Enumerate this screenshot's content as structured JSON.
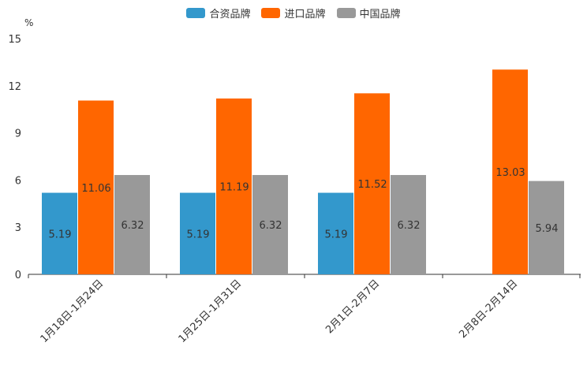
{
  "chart_data": {
    "type": "bar",
    "unit_label": "%",
    "categories": [
      "1月18日-1月24日",
      "1月25日-1月31日",
      "2月1日-2月7日",
      "2月8日-2月14日"
    ],
    "series": [
      {
        "name": "合资品牌",
        "color": "#3398cc",
        "values": [
          5.19,
          5.19,
          5.19,
          null
        ]
      },
      {
        "name": "进口品牌",
        "color": "#ff6600",
        "values": [
          11.06,
          11.19,
          11.52,
          13.03
        ]
      },
      {
        "name": "中国品牌",
        "color": "#999999",
        "values": [
          6.32,
          6.32,
          6.32,
          5.94
        ]
      }
    ],
    "ylim": [
      0,
      15
    ],
    "yticks": [
      0,
      3,
      6,
      9,
      12,
      15
    ],
    "legend_position": "top-center"
  }
}
